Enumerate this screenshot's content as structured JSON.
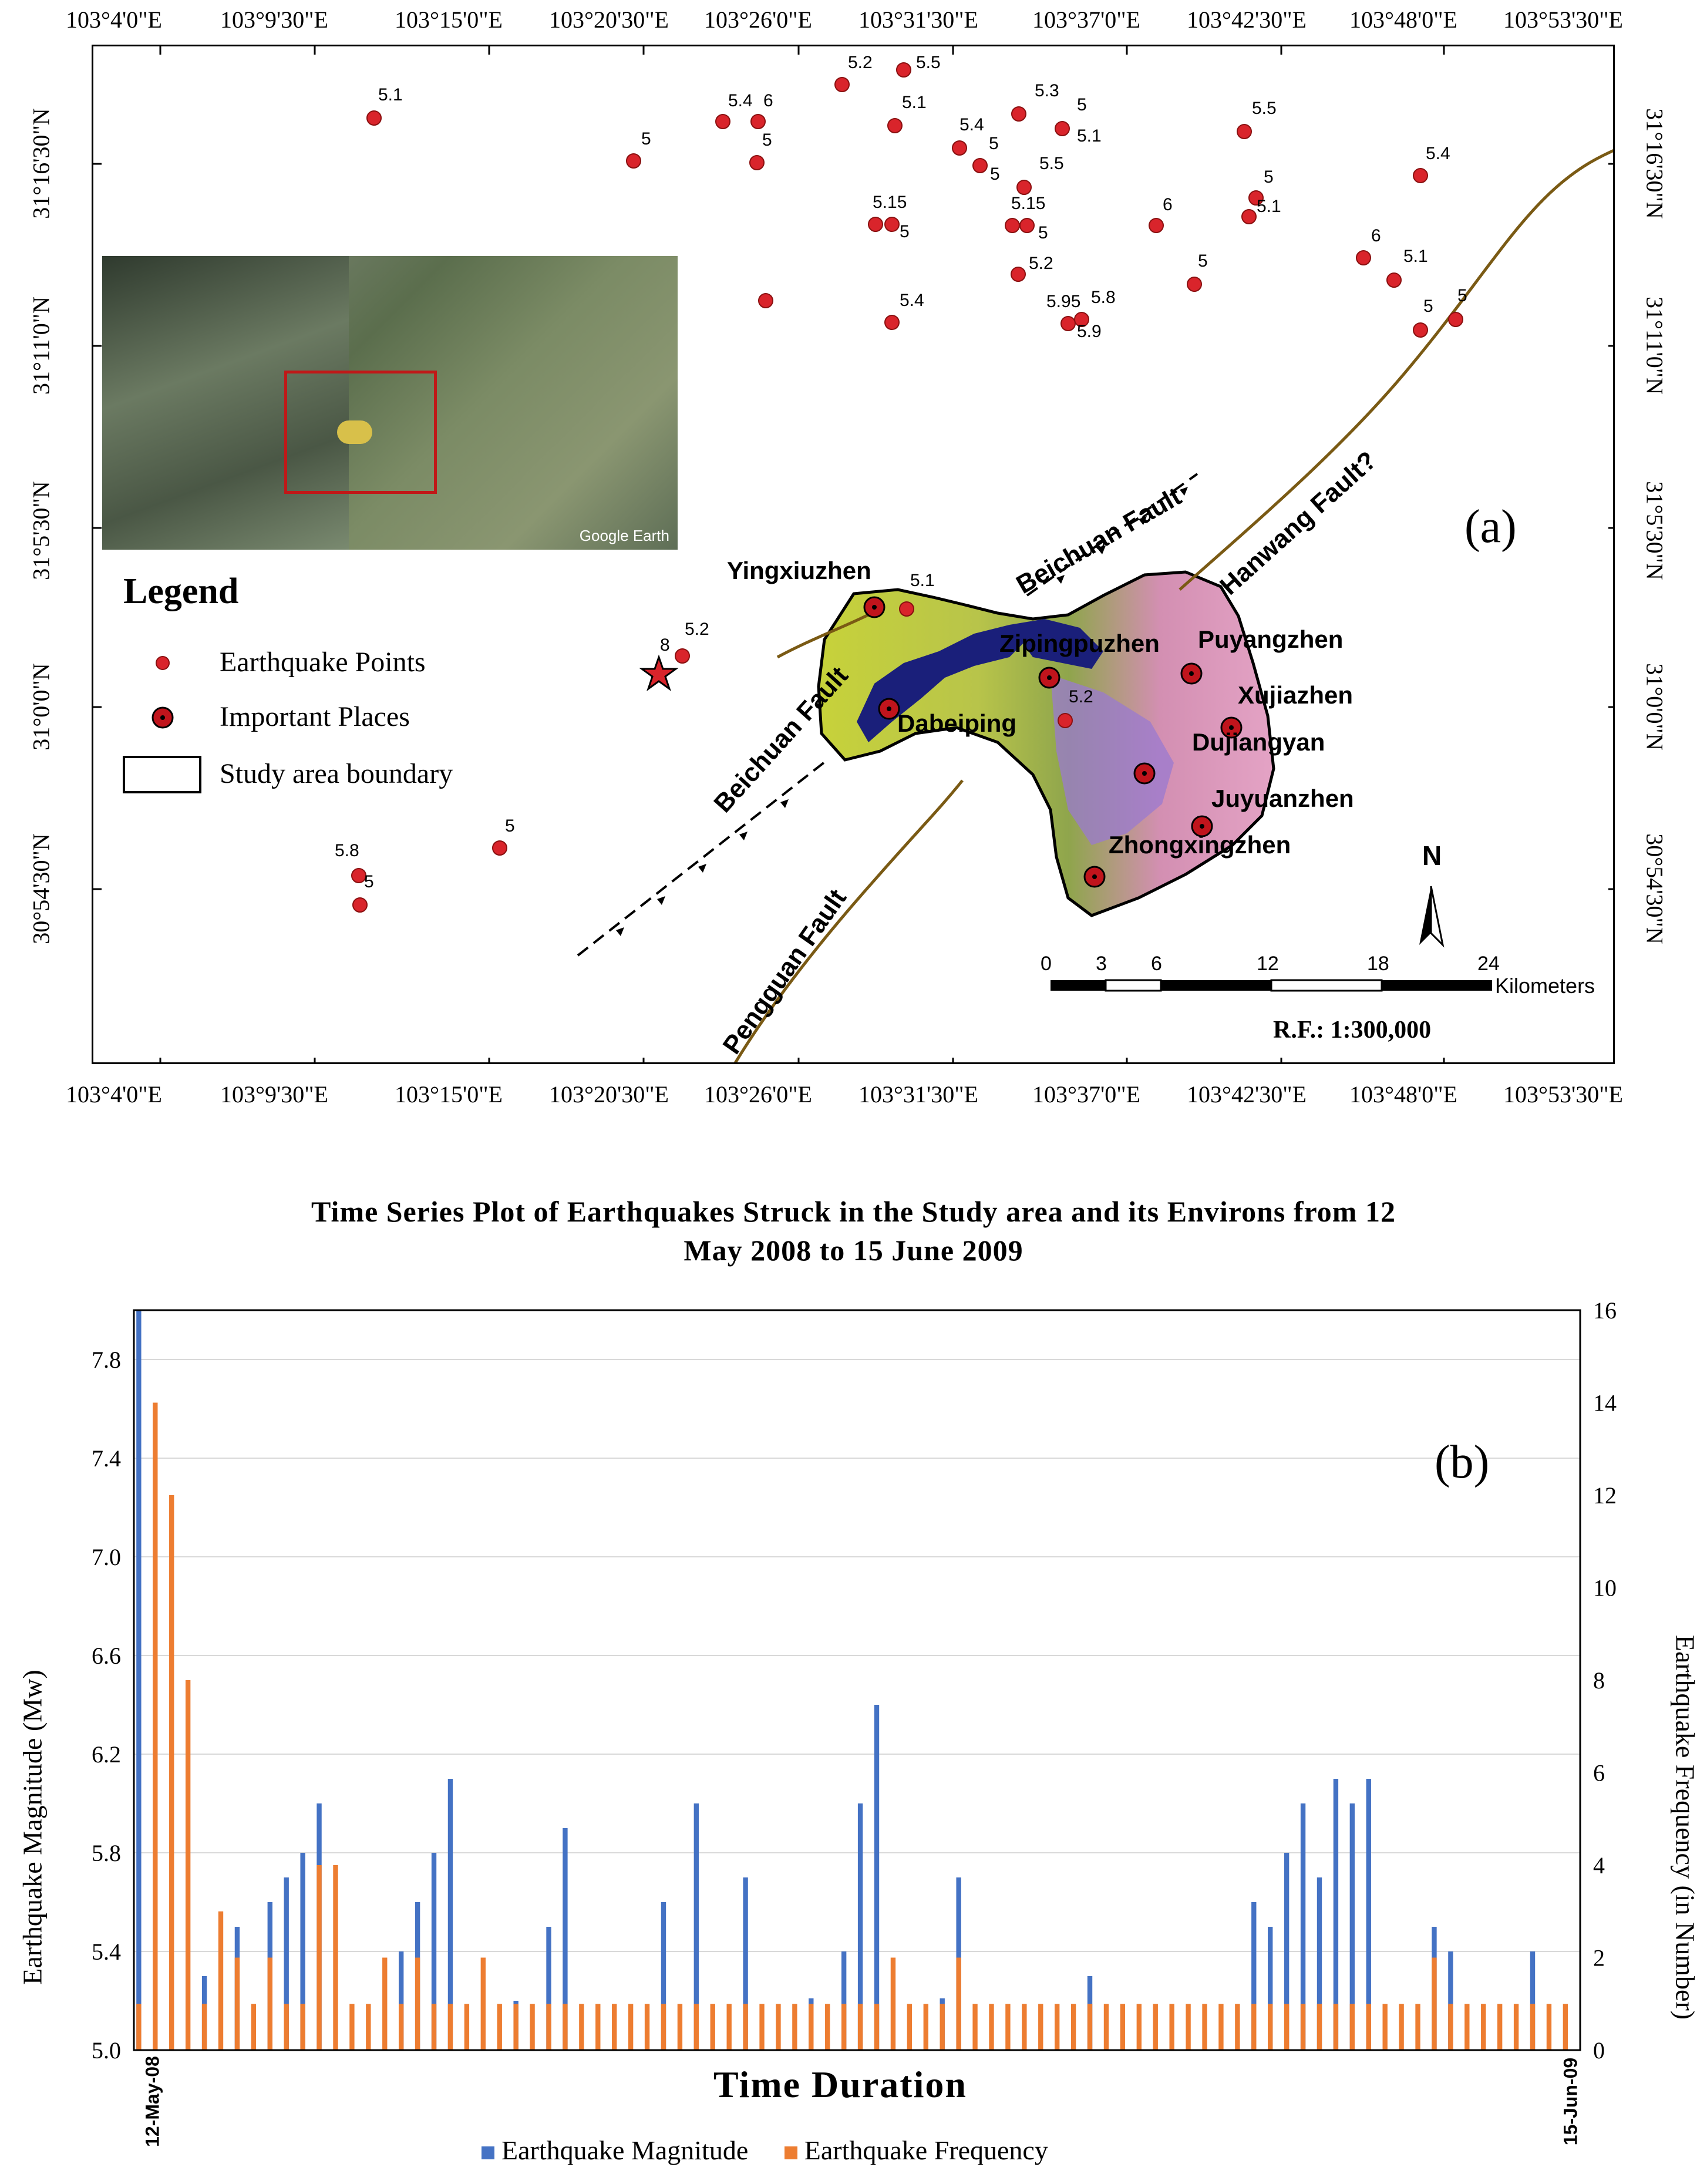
{
  "map": {
    "panel_label": "(a)",
    "lon_labels": [
      "103°4'0\"E",
      "103°9'30\"E",
      "103°15'0\"E",
      "103°20'30\"E",
      "103°26'0\"E",
      "103°31'30\"E",
      "103°37'0\"E",
      "103°42'30\"E",
      "103°48'0\"E",
      "103°53'30\"E"
    ],
    "lat_labels": [
      "31°16'30\"N",
      "31°11'0\"N",
      "31°5'30\"N",
      "31°0'0\"N",
      "30°54'30\"N"
    ],
    "legend": {
      "title": "Legend",
      "earthquake_points": "Earthquake Points",
      "important_places": "Important Places",
      "study_area_boundary": "Study area boundary"
    },
    "inset_credit": "Google Earth",
    "places": [
      "Yingxiuzhen",
      "Zipingpuzhen",
      "Puyangzhen",
      "Xujiazhen",
      "Dabeiping",
      "Dujiangyan",
      "Juyuanzhen",
      "Zhongxingzhen"
    ],
    "faults": [
      "Beichuan Fault",
      "Hanwang Fault?",
      "Beichuan Fault",
      "Pengguan Fault"
    ],
    "north_label": "N",
    "scale": {
      "ticks": [
        "0",
        "3",
        "6",
        "12",
        "18",
        "24"
      ],
      "unit": "Kilometers",
      "rf": "R.F.: 1:300,000"
    },
    "epicenter_magnitude": "8",
    "magnitudes": [
      "5.1",
      "5.4",
      "6",
      "5",
      "5",
      "5.2",
      "5.5",
      "5.1",
      "5.3",
      "5",
      "5.1",
      "5.4",
      "5",
      "5",
      "5.5",
      "5.5",
      "5",
      "5.1",
      "5.4",
      "5.15",
      "5",
      "5.15",
      "5",
      "6",
      "5",
      "5",
      "6",
      "5.1",
      "5.4",
      "5.2",
      "5.95",
      "5.8",
      "5.9",
      "5",
      "5",
      "5.1",
      "5.2",
      "5.2",
      "5",
      "5.8",
      "5"
    ]
  },
  "chart_data": {
    "type": "bar",
    "title_line1": "Time Series Plot of Earthquakes Struck in the Study area and its Environs from 12",
    "title_line2": "May 2008 to 15 June 2009",
    "panel_label": "(b)",
    "xlabel": "Time Duration",
    "ylabel_left": "Earthquake Magnitude (Mw)",
    "ylabel_right": "Earthquake Frequency (in Number)",
    "x_start": "12-May-08",
    "x_end": "15-Jun-09",
    "ylim_left": [
      5.0,
      8.0
    ],
    "yticks_left": [
      "5.0",
      "5.4",
      "5.8",
      "6.2",
      "6.6",
      "7.0",
      "7.4",
      "7.8"
    ],
    "ylim_right": [
      0,
      16
    ],
    "yticks_right": [
      "0",
      "2",
      "4",
      "6",
      "8",
      "10",
      "12",
      "14",
      "16"
    ],
    "series": [
      {
        "name": "Earthquake Magnitude",
        "color": "#4472c4",
        "values": [
          8.0,
          0,
          0,
          0,
          5.3,
          0,
          5.5,
          0,
          5.6,
          5.7,
          5.8,
          6.0,
          0,
          0,
          0,
          0,
          5.4,
          5.6,
          5.8,
          6.1,
          0,
          0,
          0,
          5.2,
          0,
          5.5,
          5.9,
          0,
          0,
          0,
          0,
          0,
          5.6,
          0,
          6.0,
          0,
          0,
          5.7,
          0,
          0,
          0,
          5.21,
          0,
          5.4,
          6.0,
          6.4,
          0,
          0,
          0,
          5.21,
          5.7,
          0,
          0,
          0,
          0,
          0,
          0,
          0,
          5.3,
          0,
          0,
          0,
          0,
          0,
          0,
          0,
          0,
          0,
          5.6,
          5.5,
          5.8,
          6.0,
          5.7,
          6.1,
          6.0,
          6.1,
          0,
          0,
          0,
          5.5,
          5.4,
          0,
          0,
          0,
          0,
          5.4,
          0,
          0
        ]
      },
      {
        "name": "Earthquake Frequency",
        "color": "#ed7d31",
        "values": [
          1,
          14,
          12,
          8,
          1,
          3,
          2,
          1,
          2,
          1,
          1,
          4,
          4,
          1,
          1,
          2,
          1,
          2,
          1,
          1,
          1,
          2,
          1,
          1,
          1,
          1,
          1,
          1,
          1,
          1,
          1,
          1,
          1,
          1,
          1,
          1,
          1,
          1,
          1,
          1,
          1,
          1,
          1,
          1,
          1,
          1,
          2,
          1,
          1,
          1,
          2,
          1,
          1,
          1,
          1,
          1,
          1,
          1,
          1,
          1,
          1,
          1,
          1,
          1,
          1,
          1,
          1,
          1,
          1,
          1,
          1,
          1,
          1,
          1,
          1,
          1,
          1,
          1,
          1,
          2,
          1,
          1,
          1,
          1,
          1,
          1,
          1,
          1
        ]
      }
    ]
  }
}
